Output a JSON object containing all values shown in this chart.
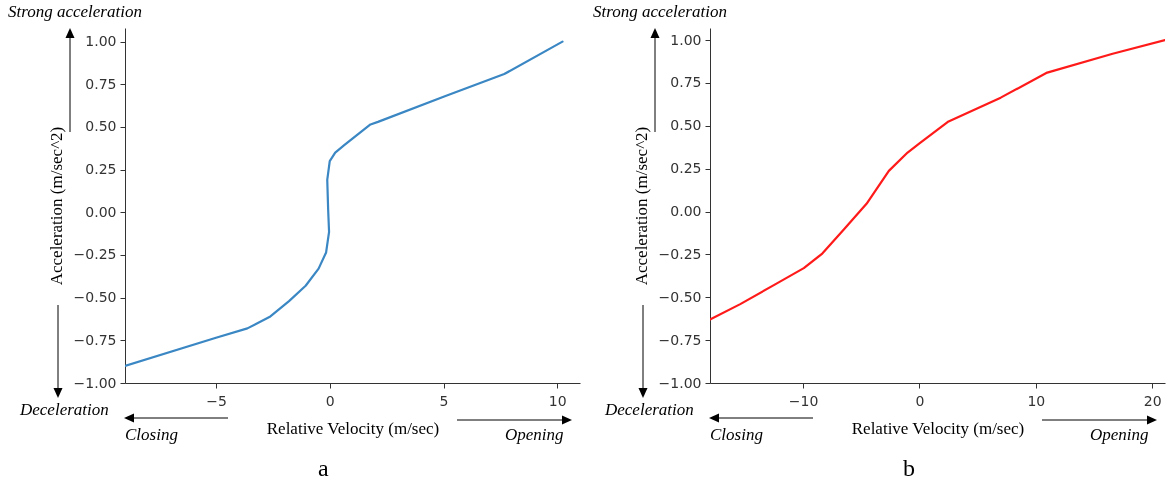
{
  "chart_data": [
    {
      "type": "line",
      "xlabel": "Relative Velocity (m/sec)",
      "ylabel": "Acceleration (m/sec^2)",
      "x": [
        -9.0,
        -5.0,
        -3.62,
        -2.61,
        -1.79,
        -1.06,
        -0.49,
        -0.16,
        -0.03,
        -0.07,
        -0.11,
        0.0,
        0.24,
        0.65,
        1.79,
        2.12,
        5.06,
        7.67,
        10.23
      ],
      "series": [
        {
          "color": "#3a87c4",
          "values": [
            -0.9,
            -0.735,
            -0.68,
            -0.61,
            -0.52,
            -0.43,
            -0.33,
            -0.235,
            -0.115,
            0.015,
            0.19,
            0.3,
            0.35,
            0.395,
            0.515,
            0.53,
            0.68,
            0.81,
            1.0
          ]
        }
      ],
      "xlim": [
        -9,
        11
      ],
      "ylim": [
        -1,
        1.08
      ],
      "xticks": [
        {
          "value": -5,
          "label": "−5"
        },
        0,
        5,
        10
      ],
      "yticks": [
        {
          "value": -1,
          "label": "−1.00"
        },
        {
          "value": -0.75,
          "label": "−0.75"
        },
        {
          "value": -0.5,
          "label": "−0.50"
        },
        {
          "value": -0.25,
          "label": "−0.25"
        },
        {
          "value": 0,
          "label": "0.00"
        },
        {
          "value": 0.25,
          "label": "0.25"
        },
        {
          "value": 0.5,
          "label": "0.50"
        },
        {
          "value": 0.75,
          "label": "0.75"
        },
        {
          "value": 1,
          "label": "1.00"
        }
      ],
      "annotations": [
        "Strong acceleration",
        "Deceleration",
        "Closing",
        "Opening",
        "a"
      ]
    },
    {
      "type": "line",
      "xlabel": "Relative Velocity (m/sec)",
      "ylabel": "Acceleration (m/sec^2)",
      "x": [
        -18.0,
        -15.4,
        -12.4,
        -9.94,
        -8.35,
        -6.5,
        -4.55,
        -2.63,
        -1.02,
        0.0,
        2.5,
        6.98,
        10.98,
        16.6,
        21.1
      ],
      "series": [
        {
          "color": "#ff1a1a",
          "values": [
            -0.63,
            -0.54,
            -0.425,
            -0.33,
            -0.245,
            -0.105,
            0.045,
            0.237,
            0.344,
            0.397,
            0.525,
            0.664,
            0.81,
            0.92,
            1.0
          ]
        }
      ],
      "xlim": [
        -18,
        21.1
      ],
      "ylim": [
        -1,
        1.07
      ],
      "xticks": [
        {
          "value": -10,
          "label": "−10"
        },
        0,
        10,
        20
      ],
      "yticks": [
        {
          "value": -1,
          "label": "−1.00"
        },
        {
          "value": -0.75,
          "label": "−0.75"
        },
        {
          "value": -0.5,
          "label": "−0.50"
        },
        {
          "value": -0.25,
          "label": "−0.25"
        },
        {
          "value": 0,
          "label": "0.00"
        },
        {
          "value": 0.25,
          "label": "0.25"
        },
        {
          "value": 0.5,
          "label": "0.50"
        },
        {
          "value": 0.75,
          "label": "0.75"
        },
        {
          "value": 1,
          "label": "1.00"
        }
      ],
      "annotations": [
        "Strong acceleration",
        "Deceleration",
        "Closing",
        "Opening",
        "b"
      ]
    }
  ]
}
